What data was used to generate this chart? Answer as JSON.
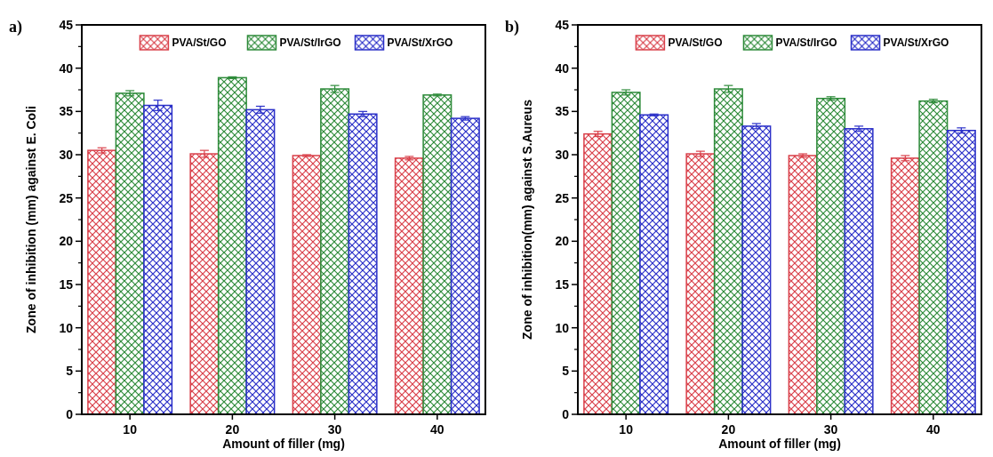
{
  "chart_data": [
    {
      "type": "bar",
      "title": "a)",
      "xlabel": "Amount of  filler (mg)",
      "ylabel": "Zone of inhibition (mm) against E. Coli",
      "categories": [
        "10",
        "20",
        "30",
        "40"
      ],
      "ylim": [
        0,
        45
      ],
      "yticks": [
        0,
        5,
        10,
        15,
        20,
        25,
        30,
        35,
        40,
        45
      ],
      "legend": "top",
      "grid": false,
      "series": [
        {
          "name": "PVA/St/GO",
          "color": "#d9404a",
          "values": [
            30.5,
            30.1,
            29.9,
            29.6
          ],
          "errors": [
            0.3,
            0.4,
            0.1,
            0.2
          ]
        },
        {
          "name": "PVA/St/IrGO",
          "color": "#2e8b3a",
          "values": [
            37.1,
            38.9,
            37.6,
            36.9
          ],
          "errors": [
            0.3,
            0.1,
            0.4,
            0.1
          ]
        },
        {
          "name": "PVA/St/XrGO",
          "color": "#2a2fc8",
          "values": [
            35.7,
            35.2,
            34.7,
            34.2
          ],
          "errors": [
            0.6,
            0.4,
            0.3,
            0.2
          ]
        }
      ]
    },
    {
      "type": "bar",
      "title": "b)",
      "xlabel": "Amount of filler (mg)",
      "ylabel": "Zone of inhibition(mm) against S.Aureus",
      "categories": [
        "10",
        "20",
        "30",
        "40"
      ],
      "ylim": [
        0,
        45
      ],
      "yticks": [
        0,
        5,
        10,
        15,
        20,
        25,
        30,
        35,
        40,
        45
      ],
      "legend": "top",
      "grid": false,
      "series": [
        {
          "name": "PVA/St/GO",
          "color": "#d9404a",
          "values": [
            32.4,
            30.1,
            29.9,
            29.6
          ],
          "errors": [
            0.3,
            0.3,
            0.2,
            0.3
          ]
        },
        {
          "name": "PVA/St/IrGO",
          "color": "#2e8b3a",
          "values": [
            37.2,
            37.6,
            36.5,
            36.2
          ],
          "errors": [
            0.3,
            0.4,
            0.2,
            0.2
          ]
        },
        {
          "name": "PVA/St/XrGO",
          "color": "#2a2fc8",
          "values": [
            34.6,
            33.3,
            33.0,
            32.8
          ],
          "errors": [
            0.1,
            0.3,
            0.3,
            0.3
          ]
        }
      ]
    }
  ]
}
